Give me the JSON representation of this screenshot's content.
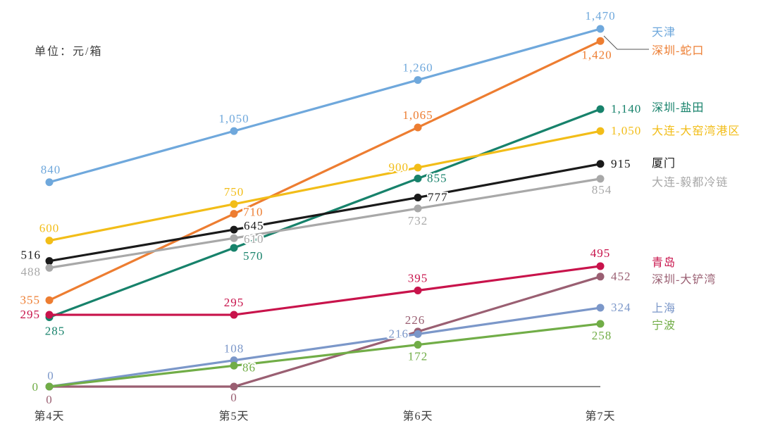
{
  "unit_label": "单位：元/箱",
  "chart_data": {
    "type": "line",
    "title": "",
    "unit": "元/箱",
    "x_labels": [
      "第4天",
      "第5天",
      "第6天",
      "第7天"
    ],
    "ylim": [
      0,
      1470
    ],
    "grid": false,
    "legend_position": "right",
    "series": [
      {
        "name": "天津",
        "color": "#6FA8DC",
        "values": [
          840,
          1050,
          1260,
          1470
        ],
        "label_pos": [
          [
            2,
            -12,
            "m"
          ],
          [
            0,
            -12,
            "m"
          ],
          [
            0,
            -12,
            "m"
          ],
          [
            0,
            -13,
            "m"
          ]
        ]
      },
      {
        "name": "深圳-蛇口",
        "color": "#ED7D31",
        "values": [
          355,
          710,
          1065,
          1420
        ],
        "label_pos": [
          [
            -13,
            5,
            "e"
          ],
          [
            13,
            3,
            "s"
          ],
          [
            0,
            -12,
            "m"
          ],
          [
            -5,
            25,
            "m"
          ]
        ]
      },
      {
        "name": "深圳-盐田",
        "color": "#17826B",
        "values": [
          285,
          570,
          855,
          1140
        ],
        "label_pos": [
          [
            8,
            25,
            "m"
          ],
          [
            13,
            17,
            "s"
          ],
          [
            13,
            5,
            "s"
          ],
          [
            15,
            5,
            "s"
          ]
        ]
      },
      {
        "name": "大连-大窑湾港区",
        "color": "#F2BD18",
        "values": [
          600,
          750,
          900,
          1050
        ],
        "label_pos": [
          [
            0,
            -12,
            "m"
          ],
          [
            0,
            -12,
            "m"
          ],
          [
            -13,
            5,
            "e"
          ],
          [
            15,
            5,
            "s"
          ]
        ]
      },
      {
        "name": "厦门",
        "color": "#1A1A1A",
        "values": [
          516,
          645,
          777,
          915
        ],
        "label_pos": [
          [
            -12,
            -3,
            "e"
          ],
          [
            14,
            0,
            "s"
          ],
          [
            14,
            5,
            "s"
          ],
          [
            15,
            5,
            "s"
          ]
        ]
      },
      {
        "name": "大连-毅都冷链",
        "color": "#A8A8A8",
        "values": [
          488,
          610,
          732,
          854
        ],
        "label_pos": [
          [
            -12,
            11,
            "e"
          ],
          [
            14,
            7,
            "s"
          ],
          [
            0,
            23,
            "m"
          ],
          [
            2,
            21,
            "m"
          ]
        ]
      },
      {
        "name": "青岛",
        "color": "#C8134B",
        "values": [
          295,
          295,
          395,
          495
        ],
        "label_pos": [
          [
            -13,
            5,
            "e"
          ],
          [
            0,
            -12,
            "m"
          ],
          [
            0,
            -12,
            "m"
          ],
          [
            0,
            -13,
            "m"
          ]
        ]
      },
      {
        "name": "深圳-大铲湾",
        "color": "#9A5F72",
        "values": [
          0,
          0,
          226,
          452
        ],
        "label_pos": [
          [
            0,
            24,
            "m"
          ],
          [
            0,
            21,
            "m"
          ],
          [
            -4,
            -11,
            "m"
          ],
          [
            15,
            5,
            "s"
          ]
        ]
      },
      {
        "name": "上海",
        "color": "#7B97C9",
        "values": [
          0,
          108,
          216,
          324
        ],
        "label_pos": [
          [
            2,
            -10,
            "m"
          ],
          [
            0,
            -11,
            "m"
          ],
          [
            -13,
            5,
            "e"
          ],
          [
            15,
            5,
            "s"
          ]
        ]
      },
      {
        "name": "宁波",
        "color": "#71AD47",
        "values": [
          0,
          86,
          172,
          258
        ],
        "label_pos": [
          [
            -15,
            6,
            "e"
          ],
          [
            12,
            8,
            "s"
          ],
          [
            0,
            22,
            "m"
          ],
          [
            2,
            22,
            "m"
          ]
        ]
      }
    ]
  }
}
